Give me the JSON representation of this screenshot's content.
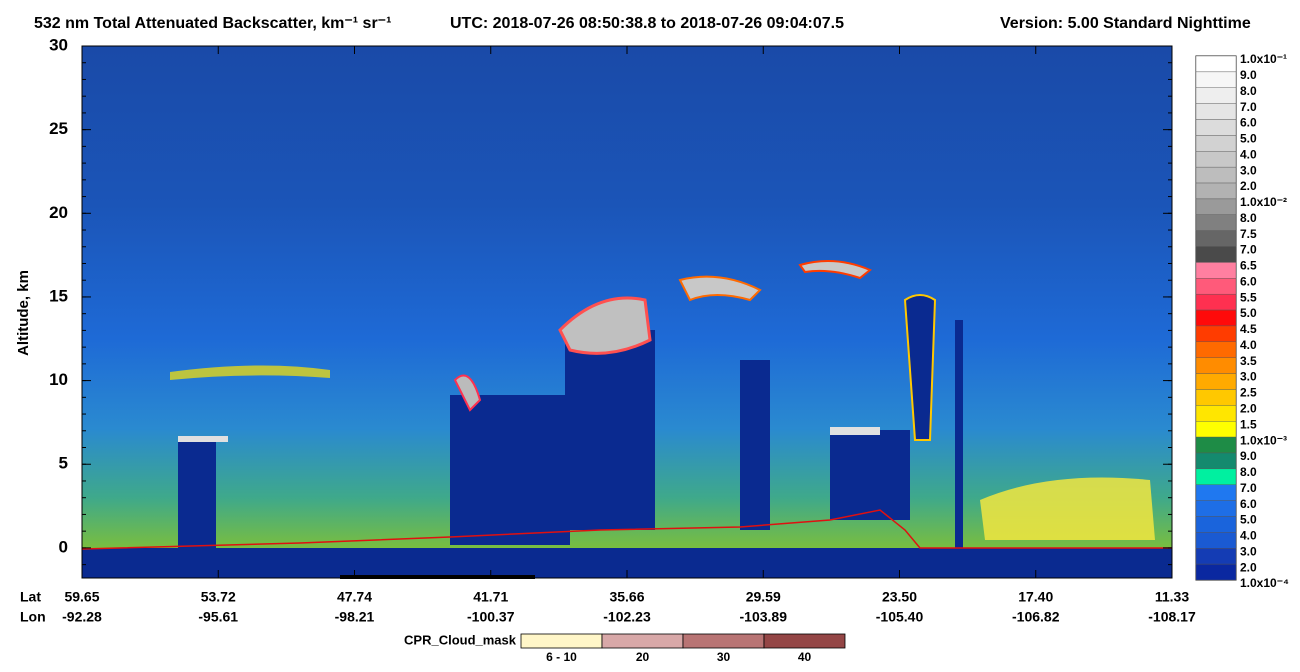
{
  "chart_data": {
    "type": "curtain",
    "title": "532 nm Total Attenuated Backscatter, km⁻¹ sr⁻¹",
    "utc": "UTC:  2018-07-26 08:50:38.8  to  2018-07-26 09:04:07.5",
    "version": "Version: 5.00  Standard  Nighttime",
    "ylabel": "Altitude, km",
    "ylim": [
      -1.8,
      30
    ],
    "yticks": [
      0,
      5,
      10,
      15,
      20,
      25,
      30
    ],
    "x_row_labels": [
      "Lat",
      "Lon"
    ],
    "lat": [
      "59.65",
      "53.72",
      "47.74",
      "41.71",
      "35.66",
      "29.59",
      "23.50",
      "17.40",
      "11.33"
    ],
    "lon": [
      "-92.28",
      "-95.61",
      "-98.21",
      "-100.37",
      "-102.23",
      "-103.89",
      "-105.40",
      "-106.82",
      "-108.17"
    ],
    "colorbar": {
      "labels": [
        "1.0x10⁻¹",
        "9.0",
        "8.0",
        "7.0",
        "6.0",
        "5.0",
        "4.0",
        "3.0",
        "2.0",
        "1.0x10⁻²",
        "8.0",
        "7.5",
        "7.0",
        "6.5",
        "6.0",
        "5.5",
        "5.0",
        "4.5",
        "4.0",
        "3.5",
        "3.0",
        "2.5",
        "2.0",
        "1.5",
        "1.0x10⁻³",
        "9.0",
        "8.0",
        "7.0",
        "6.0",
        "5.0",
        "4.0",
        "3.0",
        "2.0",
        "1.0x10⁻⁴"
      ],
      "colors": [
        "#ffffff",
        "#f6f6f6",
        "#eeeeee",
        "#e5e5e5",
        "#dcdcdc",
        "#d2d2d2",
        "#c8c8c8",
        "#bdbdbd",
        "#b2b2b2",
        "#9a9a9a",
        "#808080",
        "#666666",
        "#4a4a4a",
        "#ff7fa0",
        "#ff5a7a",
        "#ff3050",
        "#ff0a0a",
        "#ff3c00",
        "#ff6a00",
        "#ff8c00",
        "#ffaa00",
        "#ffc800",
        "#ffe600",
        "#ffff00",
        "#1e8c46",
        "#148a6e",
        "#00f0a0",
        "#1f78f0",
        "#1e6ee6",
        "#1a64dc",
        "#1a5ad2",
        "#143cb4",
        "#0a28a0"
      ]
    },
    "cpr": {
      "label": "CPR_Cloud_mask",
      "bins": [
        "6 - 10",
        "20",
        "30",
        "40"
      ],
      "colors": [
        "#fff6c8",
        "#d8a8a8",
        "#b87474",
        "#944646"
      ]
    }
  }
}
